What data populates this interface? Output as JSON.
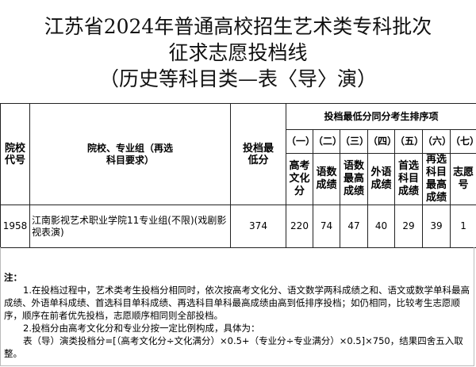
{
  "title": {
    "line1": "江苏省2024年普通高校招生艺术类专科批次",
    "line2": "征求志愿投档线",
    "line3": "（历史等科目类—表〈导〉演）"
  },
  "table": {
    "col_code": "院校代号",
    "col_group": "院校、专业组（再选科目要求）",
    "col_min": "投档最低分",
    "col_rank": "投档最低分同分考生排序项",
    "rank_nums": [
      "（一）",
      "（二）",
      "（三）",
      "（四）",
      "（五）",
      "（六）",
      "（七）"
    ],
    "rank_names": [
      "高考文化分",
      "语数成绩",
      "语数最高成绩",
      "外语成绩",
      "首选科目成绩",
      "再选科目最高成绩",
      "志愿号"
    ],
    "rows": [
      {
        "code": "1958",
        "group": "江南影视艺术职业学院11专业组(不限)(戏剧影视表演)",
        "min": "374",
        "ranks": [
          "220",
          "74",
          "47",
          "40",
          "29",
          "39",
          "1"
        ]
      }
    ]
  },
  "notes": {
    "label": "注：",
    "n1": "1.在投档过程中，艺术类考生投档分相同时，依次按高考文化分、语文数学两科成绩之和、语文或数学单科最高成绩、外语单科成绩、首选科目单科成绩、再选科目单科最高成绩由高到低排序投档；如仍相同，比较考生志愿顺序，顺序在前者优先投档，志愿顺序相同则全部投档。",
    "n2": "2.投档分由高考文化分和专业分按一定比例构成，具体为：",
    "n3": "表（导）演类投档分=[（高考文化分÷文化满分）×0.5+（专业分÷专业满分）×0.5]×750，结果四舍五入取整。"
  }
}
